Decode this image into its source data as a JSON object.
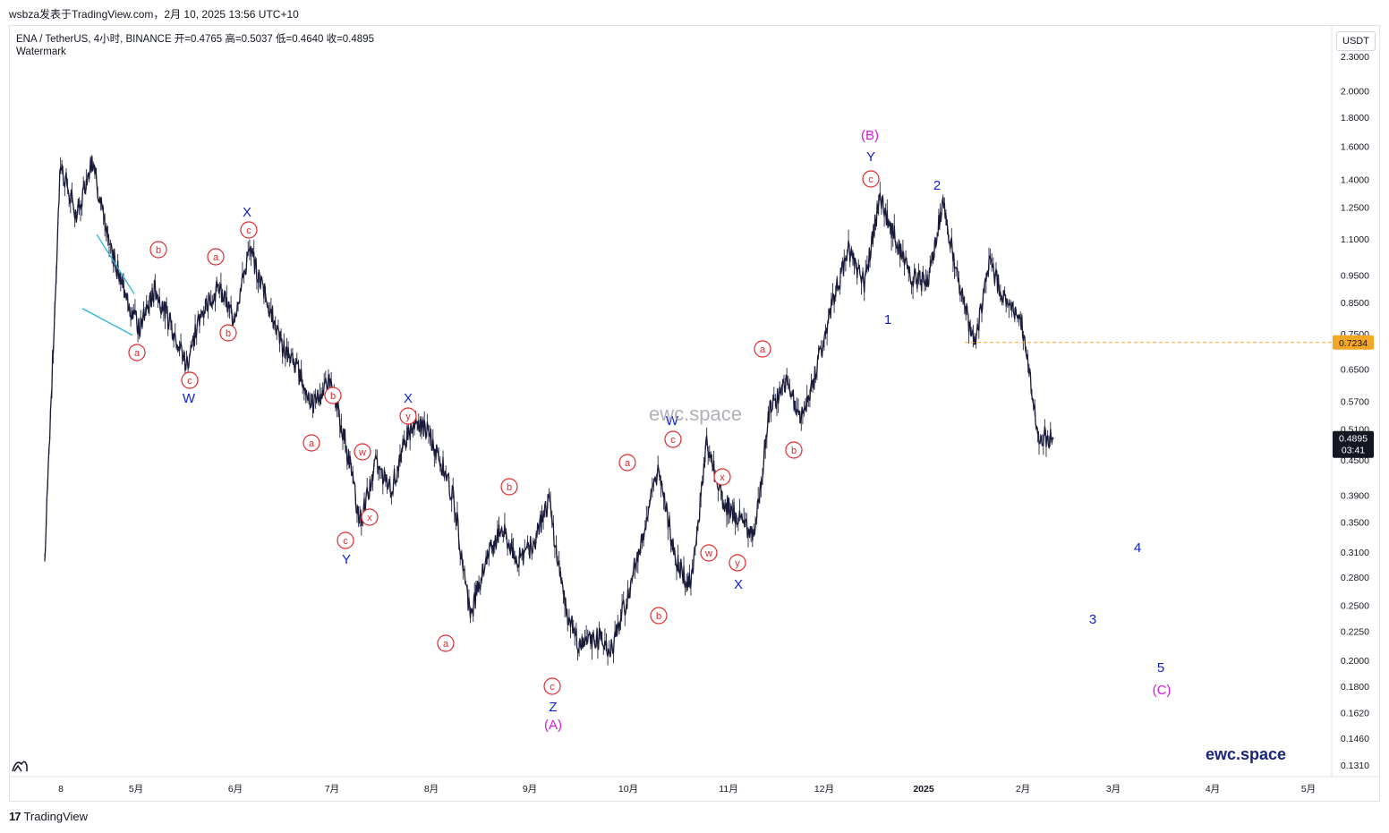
{
  "header": {
    "title": "wsbza发表于TradingView.com，2月 10, 2025 13:56 UTC+10"
  },
  "symbol_line": "ENA / TetherUS, 4小时, BINANCE  开=0.4765  高=0.5037  低=0.4640  收=0.4895",
  "watermark_label": "Watermark",
  "currency_button": "USDT",
  "footer": {
    "brand": "TradingView",
    "logo": "17"
  },
  "center_watermark": "ewc.space",
  "corner_watermark": "ewc.space",
  "colors": {
    "candle": "#1a1a3a",
    "wave_blue": "#0d1fd1",
    "wave_red": "#e3282a",
    "wave_magenta": "#d41ad9",
    "trendline": "#29b6d8",
    "level_line": "#f5a623",
    "price_tag": "#131722"
  },
  "chart_data": {
    "type": "line",
    "title": "",
    "xlabel": "",
    "ylabel": "",
    "ylim": [
      0.125,
      2.5
    ],
    "y_scale": "log",
    "y_ticks": [
      "2.3000",
      "2.0000",
      "1.8000",
      "1.6000",
      "1.4000",
      "1.2500",
      "1.1000",
      "0.9500",
      "0.8500",
      "0.7500",
      "0.6500",
      "0.5700",
      "0.5100",
      "0.4500",
      "0.3900",
      "0.3500",
      "0.3100",
      "0.2800",
      "0.2500",
      "0.2250",
      "0.2000",
      "0.1800",
      "0.1620",
      "0.1460",
      "0.1310"
    ],
    "x_ticks": [
      "8",
      "5月",
      "6月",
      "7月",
      "8月",
      "9月",
      "10月",
      "11月",
      "12月",
      "2025",
      "2月",
      "3月",
      "4月",
      "5月"
    ],
    "series": [
      {
        "values_by_month": [
          [
            "4月初",
            0.3
          ],
          [
            "4月",
            1.5
          ],
          [
            "4月",
            1.2
          ],
          [
            "4月",
            1.52
          ],
          [
            "4月",
            1.1
          ],
          [
            "4月末",
            0.9
          ],
          [
            "5月初",
            0.76
          ],
          [
            "5月",
            0.9
          ],
          [
            "5月",
            0.78
          ],
          [
            "5月中",
            0.66
          ],
          [
            "5月",
            0.83
          ],
          [
            "5月",
            0.9
          ],
          [
            "5月末",
            0.8
          ],
          [
            "6月初",
            1.05
          ],
          [
            "6月",
            0.88
          ],
          [
            "6月",
            0.72
          ],
          [
            "6月",
            0.65
          ],
          [
            "6月中",
            0.56
          ],
          [
            "6月",
            0.62
          ],
          [
            "6月末",
            0.5
          ],
          [
            "7月初",
            0.35
          ],
          [
            "7月",
            0.44
          ],
          [
            "7月",
            0.4
          ],
          [
            "7月中",
            0.5
          ],
          [
            "7月",
            0.52
          ],
          [
            "7月",
            0.46
          ],
          [
            "7月末",
            0.38
          ],
          [
            "8月初",
            0.24
          ],
          [
            "8月",
            0.3
          ],
          [
            "8月",
            0.34
          ],
          [
            "8月中",
            0.3
          ],
          [
            "8月",
            0.32
          ],
          [
            "8月末",
            0.38
          ],
          [
            "9月初",
            0.25
          ],
          [
            "9月",
            0.21
          ],
          [
            "9月",
            0.22
          ],
          [
            "9月中",
            0.21
          ],
          [
            "9月",
            0.26
          ],
          [
            "9月末",
            0.34
          ],
          [
            "10月初",
            0.44
          ],
          [
            "10月",
            0.3
          ],
          [
            "10月中",
            0.27
          ],
          [
            "10月",
            0.48
          ],
          [
            "10月",
            0.38
          ],
          [
            "10月末",
            0.36
          ],
          [
            "11月初",
            0.33
          ],
          [
            "11月",
            0.55
          ],
          [
            "11月中",
            0.62
          ],
          [
            "11月",
            0.53
          ],
          [
            "11月末",
            0.65
          ],
          [
            "12月初",
            0.85
          ],
          [
            "12月",
            1.05
          ],
          [
            "12月",
            0.92
          ],
          [
            "12月中",
            1.3
          ],
          [
            "12月",
            1.1
          ],
          [
            "12月末",
            0.95
          ],
          [
            "1月初",
            0.92
          ],
          [
            "1月",
            1.28
          ],
          [
            "1月中",
            0.92
          ],
          [
            "1月",
            0.72
          ],
          [
            "1月",
            1.0
          ],
          [
            "1月末",
            0.85
          ],
          [
            "2月初",
            0.78
          ],
          [
            "2月",
            0.5
          ],
          [
            "2月10日",
            0.4895
          ]
        ]
      }
    ],
    "last_price": {
      "label": "0.4895",
      "countdown": "03:41"
    },
    "level_line": {
      "label": "0.7234",
      "value": 0.7234,
      "style": "dashed"
    },
    "annotations": {
      "red_circled": [
        "a",
        "b",
        "c",
        "a",
        "b",
        "c",
        "b",
        "a",
        "c",
        "w",
        "x",
        "y",
        "b",
        "a",
        "c",
        "a",
        "b",
        "c",
        "w",
        "x",
        "y",
        "a",
        "b",
        "c"
      ],
      "blue": [
        "X",
        "W",
        "X",
        "Y",
        "W",
        "X",
        "Z",
        "Y",
        "1",
        "2",
        "3",
        "4",
        "5"
      ],
      "magenta": [
        "(A)",
        "(B)",
        "(C)"
      ]
    }
  }
}
